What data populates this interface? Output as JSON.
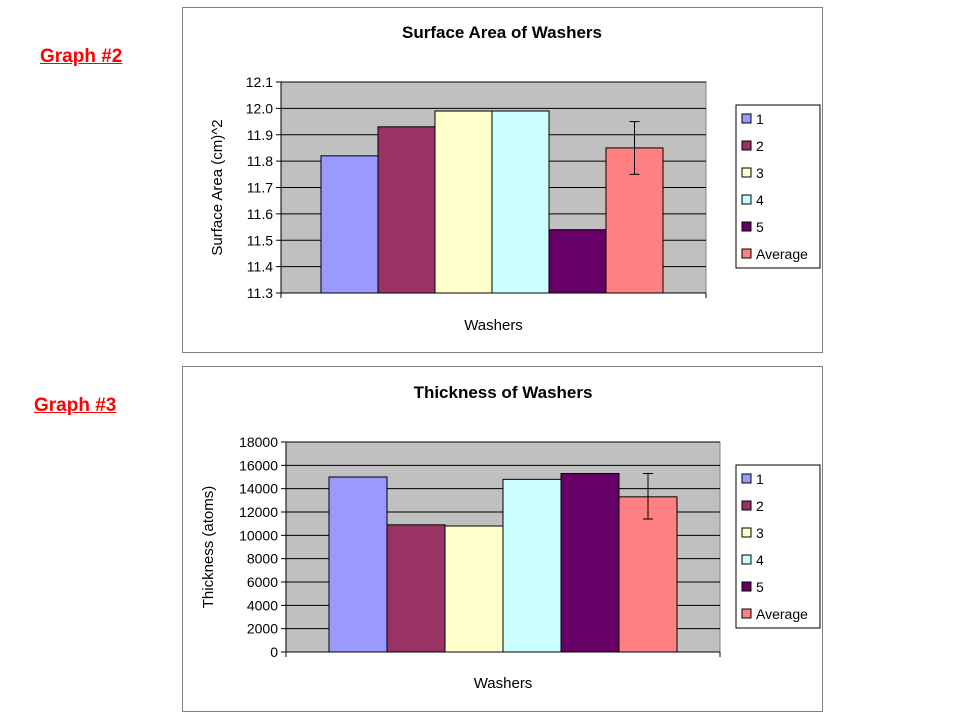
{
  "labels": [
    "Graph #2",
    "Graph #3"
  ],
  "chart_data": [
    {
      "type": "bar",
      "title": "Surface Area of Washers",
      "xlabel": "Washers",
      "ylabel": "Surface Area (cm)^2",
      "ylim": [
        11.3,
        12.1
      ],
      "yticks": [
        "11.3",
        "11.4",
        "11.5",
        "11.6",
        "11.7",
        "11.8",
        "11.9",
        "12.0",
        "12.1"
      ],
      "series": [
        {
          "name": "1",
          "value": 11.82,
          "color": "#9999ff"
        },
        {
          "name": "2",
          "value": 11.93,
          "color": "#993366"
        },
        {
          "name": "3",
          "value": 11.99,
          "color": "#ffffcc"
        },
        {
          "name": "4",
          "value": 11.99,
          "color": "#ccffff"
        },
        {
          "name": "5",
          "value": 11.54,
          "color": "#660066"
        },
        {
          "name": "Average",
          "value": 11.85,
          "color": "#ff8080",
          "error": [
            11.75,
            11.95
          ]
        }
      ],
      "grid": true,
      "legend": "right"
    },
    {
      "type": "bar",
      "title": "Thickness of Washers",
      "xlabel": "Washers",
      "ylabel": "Thickness (atoms)",
      "ylim": [
        0,
        18000
      ],
      "yticks": [
        "0",
        "2000",
        "4000",
        "6000",
        "8000",
        "10000",
        "12000",
        "14000",
        "16000",
        "18000"
      ],
      "series": [
        {
          "name": "1",
          "value": 15000,
          "color": "#9999ff"
        },
        {
          "name": "2",
          "value": 10900,
          "color": "#993366"
        },
        {
          "name": "3",
          "value": 10800,
          "color": "#ffffcc"
        },
        {
          "name": "4",
          "value": 14800,
          "color": "#ccffff"
        },
        {
          "name": "5",
          "value": 15300,
          "color": "#660066"
        },
        {
          "name": "Average",
          "value": 13300,
          "color": "#ff8080",
          "error": [
            11400,
            15300
          ]
        }
      ],
      "grid": true,
      "legend": "right"
    }
  ]
}
